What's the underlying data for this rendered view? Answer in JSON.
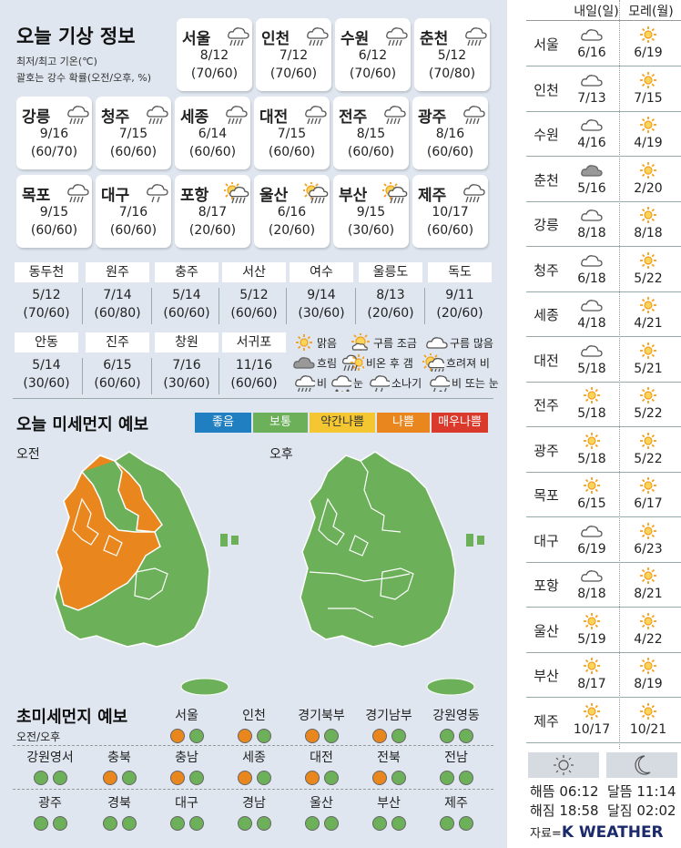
{
  "weather": {
    "title": "오늘 기상 정보",
    "subtitle1": "최저/최고 기온(℃)",
    "subtitle2": "괄호는 강수 확률(오전/오후, %)",
    "cards": [
      {
        "name": "서울",
        "temp": "8/12",
        "prob": "(70/60)",
        "icon": "rain-icon"
      },
      {
        "name": "인천",
        "temp": "7/12",
        "prob": "(70/60)",
        "icon": "rain-icon"
      },
      {
        "name": "수원",
        "temp": "6/12",
        "prob": "(70/60)",
        "icon": "rain-icon"
      },
      {
        "name": "춘천",
        "temp": "5/12",
        "prob": "(70/80)",
        "icon": "rain-icon"
      },
      {
        "name": "강릉",
        "temp": "9/16",
        "prob": "(60/70)",
        "icon": "rain-icon"
      },
      {
        "name": "청주",
        "temp": "7/15",
        "prob": "(60/60)",
        "icon": "rain-icon"
      },
      {
        "name": "세종",
        "temp": "6/14",
        "prob": "(60/60)",
        "icon": "rain-icon"
      },
      {
        "name": "대전",
        "temp": "7/15",
        "prob": "(60/60)",
        "icon": "rain-icon"
      },
      {
        "name": "전주",
        "temp": "8/15",
        "prob": "(60/60)",
        "icon": "rain-icon"
      },
      {
        "name": "광주",
        "temp": "8/16",
        "prob": "(60/60)",
        "icon": "rain-icon"
      },
      {
        "name": "목포",
        "temp": "9/15",
        "prob": "(60/60)",
        "icon": "rain-icon"
      },
      {
        "name": "대구",
        "temp": "7/16",
        "prob": "(60/60)",
        "icon": "shower-icon"
      },
      {
        "name": "포항",
        "temp": "8/17",
        "prob": "(20/60)",
        "icon": "sun-rain-icon"
      },
      {
        "name": "울산",
        "temp": "6/16",
        "prob": "(20/60)",
        "icon": "sun-rain-icon"
      },
      {
        "name": "부산",
        "temp": "9/15",
        "prob": "(30/60)",
        "icon": "sun-rain-icon"
      },
      {
        "name": "제주",
        "temp": "10/17",
        "prob": "(60/60)",
        "icon": "rain-icon"
      }
    ],
    "small_cities": [
      {
        "name": "동두천",
        "temp": "5/12",
        "prob": "(70/60)"
      },
      {
        "name": "원주",
        "temp": "7/14",
        "prob": "(60/80)"
      },
      {
        "name": "충주",
        "temp": "5/14",
        "prob": "(60/60)"
      },
      {
        "name": "서산",
        "temp": "5/12",
        "prob": "(60/60)"
      },
      {
        "name": "여수",
        "temp": "9/14",
        "prob": "(30/60)"
      },
      {
        "name": "울릉도",
        "temp": "8/13",
        "prob": "(20/60)"
      },
      {
        "name": "독도",
        "temp": "9/11",
        "prob": "(20/60)"
      },
      {
        "name": "안동",
        "temp": "5/14",
        "prob": "(30/60)"
      },
      {
        "name": "진주",
        "temp": "6/15",
        "prob": "(60/60)"
      },
      {
        "name": "창원",
        "temp": "7/16",
        "prob": "(30/60)"
      },
      {
        "name": "서귀포",
        "temp": "11/16",
        "prob": "(60/60)"
      }
    ],
    "legend": [
      {
        "label": "맑음",
        "icon": "sun-icon"
      },
      {
        "label": "구름 조금",
        "icon": "sun-cloud-icon"
      },
      {
        "label": "구름 많음",
        "icon": "cloud-outline-icon"
      },
      {
        "label": "흐림",
        "icon": "cloud-gray-icon"
      },
      {
        "label": "비온 후 갬",
        "icon": "rain-then-clear-icon"
      },
      {
        "label": "흐려져 비",
        "icon": "sun-rain-icon"
      },
      {
        "label": "비",
        "icon": "rain-icon"
      },
      {
        "label": "눈",
        "icon": "snow-icon"
      },
      {
        "label": "소나기",
        "icon": "shower-icon"
      },
      {
        "label": "비 또는 눈",
        "icon": "rain-snow-icon"
      }
    ]
  },
  "dust": {
    "title": "오늘 미세먼지 예보",
    "levels": [
      {
        "label": "좋음",
        "color": "#1f7fc0"
      },
      {
        "label": "보통",
        "color": "#6cb05a"
      },
      {
        "label": "약간나쁨",
        "color": "#f3c632"
      },
      {
        "label": "나쁨",
        "color": "#e9871e"
      },
      {
        "label": "매우나쁨",
        "color": "#d93a2b"
      }
    ],
    "am_label": "오전",
    "pm_label": "오후"
  },
  "ultrafine": {
    "title": "초미세먼지 예보",
    "subtitle": "오전/오후",
    "regions": [
      {
        "name": "서울",
        "am": "orange",
        "pm": "green"
      },
      {
        "name": "인천",
        "am": "orange",
        "pm": "green"
      },
      {
        "name": "경기북부",
        "am": "orange",
        "pm": "green"
      },
      {
        "name": "경기남부",
        "am": "orange",
        "pm": "green"
      },
      {
        "name": "강원영동",
        "am": "green",
        "pm": "green"
      },
      {
        "name": "강원영서",
        "am": "green",
        "pm": "green"
      },
      {
        "name": "충북",
        "am": "orange",
        "pm": "green"
      },
      {
        "name": "충남",
        "am": "orange",
        "pm": "green"
      },
      {
        "name": "세종",
        "am": "orange",
        "pm": "green"
      },
      {
        "name": "대전",
        "am": "orange",
        "pm": "green"
      },
      {
        "name": "전북",
        "am": "orange",
        "pm": "green"
      },
      {
        "name": "전남",
        "am": "green",
        "pm": "green"
      },
      {
        "name": "광주",
        "am": "green",
        "pm": "green"
      },
      {
        "name": "경북",
        "am": "green",
        "pm": "green"
      },
      {
        "name": "대구",
        "am": "green",
        "pm": "green"
      },
      {
        "name": "경남",
        "am": "green",
        "pm": "green"
      },
      {
        "name": "울산",
        "am": "green",
        "pm": "green"
      },
      {
        "name": "부산",
        "am": "green",
        "pm": "green"
      },
      {
        "name": "제주",
        "am": "green",
        "pm": "green"
      }
    ],
    "colors": {
      "orange": "#e9871e",
      "green": "#6cb05a"
    }
  },
  "forecast": {
    "tomorrow_label": "내일(일)",
    "dayafter_label": "모레(월)",
    "rows": [
      {
        "city": "서울",
        "d1": "6/16",
        "d1_icon": "cloud-outline-icon",
        "d2": "6/19",
        "d2_icon": "sun-icon"
      },
      {
        "city": "인천",
        "d1": "7/13",
        "d1_icon": "cloud-outline-icon",
        "d2": "7/15",
        "d2_icon": "sun-icon"
      },
      {
        "city": "수원",
        "d1": "4/16",
        "d1_icon": "cloud-outline-icon",
        "d2": "4/19",
        "d2_icon": "sun-icon"
      },
      {
        "city": "춘천",
        "d1": "5/16",
        "d1_icon": "cloud-gray-icon",
        "d2": "2/20",
        "d2_icon": "sun-icon"
      },
      {
        "city": "강릉",
        "d1": "8/18",
        "d1_icon": "cloud-outline-icon",
        "d2": "8/18",
        "d2_icon": "sun-icon"
      },
      {
        "city": "청주",
        "d1": "6/18",
        "d1_icon": "cloud-outline-icon",
        "d2": "5/22",
        "d2_icon": "sun-icon"
      },
      {
        "city": "세종",
        "d1": "4/18",
        "d1_icon": "cloud-outline-icon",
        "d2": "4/21",
        "d2_icon": "sun-icon"
      },
      {
        "city": "대전",
        "d1": "5/18",
        "d1_icon": "cloud-outline-icon",
        "d2": "5/21",
        "d2_icon": "sun-icon"
      },
      {
        "city": "전주",
        "d1": "5/18",
        "d1_icon": "sun-icon",
        "d2": "5/22",
        "d2_icon": "sun-icon"
      },
      {
        "city": "광주",
        "d1": "5/18",
        "d1_icon": "sun-icon",
        "d2": "5/22",
        "d2_icon": "sun-icon"
      },
      {
        "city": "목포",
        "d1": "6/15",
        "d1_icon": "sun-icon",
        "d2": "6/17",
        "d2_icon": "sun-icon"
      },
      {
        "city": "대구",
        "d1": "6/19",
        "d1_icon": "cloud-outline-icon",
        "d2": "6/23",
        "d2_icon": "sun-icon"
      },
      {
        "city": "포항",
        "d1": "8/18",
        "d1_icon": "cloud-outline-icon",
        "d2": "8/21",
        "d2_icon": "sun-icon"
      },
      {
        "city": "울산",
        "d1": "5/19",
        "d1_icon": "sun-icon",
        "d2": "4/22",
        "d2_icon": "sun-icon"
      },
      {
        "city": "부산",
        "d1": "8/17",
        "d1_icon": "sun-icon",
        "d2": "8/19",
        "d2_icon": "sun-icon"
      },
      {
        "city": "제주",
        "d1": "10/17",
        "d1_icon": "sun-icon",
        "d2": "10/21",
        "d2_icon": "sun-icon"
      }
    ],
    "sunrise": "해뜸 06:12",
    "sunset": "해짐 18:58",
    "moonrise": "달뜸 11:14",
    "moonset": "달짐 02:02",
    "source_prefix": "자료=",
    "source_name": "K WEATHER"
  }
}
